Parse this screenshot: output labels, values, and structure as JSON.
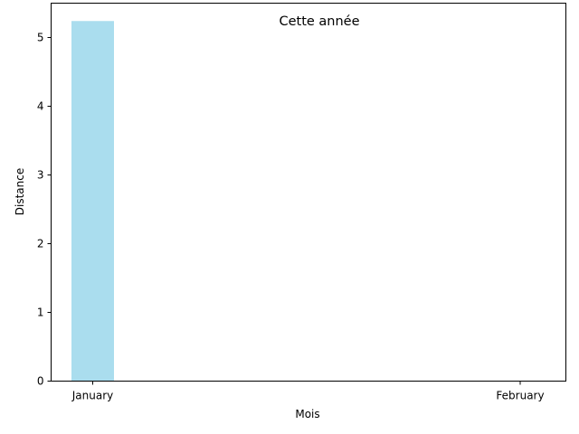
{
  "chart_data": {
    "type": "bar",
    "title": "Cette année",
    "xlabel": "Mois",
    "ylabel": "Distance",
    "categories": [
      "January",
      "February"
    ],
    "values": [
      5.24,
      0
    ],
    "ylim": [
      0,
      5.5
    ],
    "yticks": [
      0,
      1,
      2,
      3,
      4,
      5
    ],
    "grid": false,
    "bar_color": "#aaddee"
  }
}
